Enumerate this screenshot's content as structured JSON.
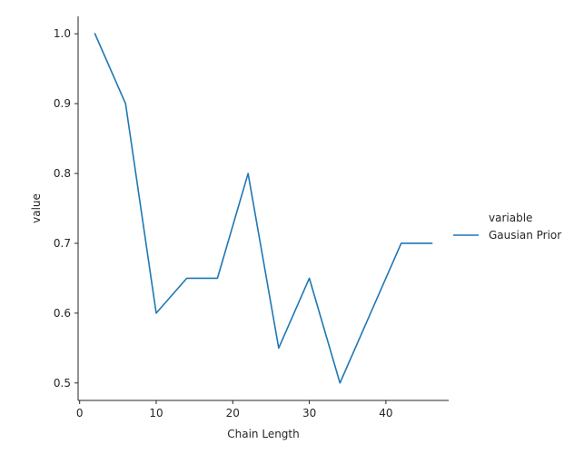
{
  "chart_data": {
    "type": "line",
    "title": "",
    "xlabel": "Chain Length",
    "ylabel": "value",
    "xlim": [
      -0.2,
      48.2
    ],
    "ylim": [
      0.475,
      1.025
    ],
    "x_ticks": [
      0,
      10,
      20,
      30,
      40
    ],
    "y_ticks": [
      0.5,
      0.6,
      0.7,
      0.8,
      0.9,
      1.0
    ],
    "x_tick_labels": [
      "0",
      "10",
      "20",
      "30",
      "40"
    ],
    "y_tick_labels": [
      "0.5",
      "0.6",
      "0.7",
      "0.8",
      "0.9",
      "1.0"
    ],
    "grid": false,
    "legend": {
      "title": "variable",
      "placement": "right"
    },
    "series": [
      {
        "name": "Gausian Prior",
        "color": "#1f77b4",
        "x": [
          2,
          6,
          10,
          14,
          18,
          22,
          26,
          30,
          34,
          38,
          42,
          46
        ],
        "y": [
          1.0,
          0.9,
          0.6,
          0.65,
          0.65,
          0.8,
          0.55,
          0.65,
          0.5,
          0.6,
          0.7,
          0.7
        ]
      }
    ]
  }
}
